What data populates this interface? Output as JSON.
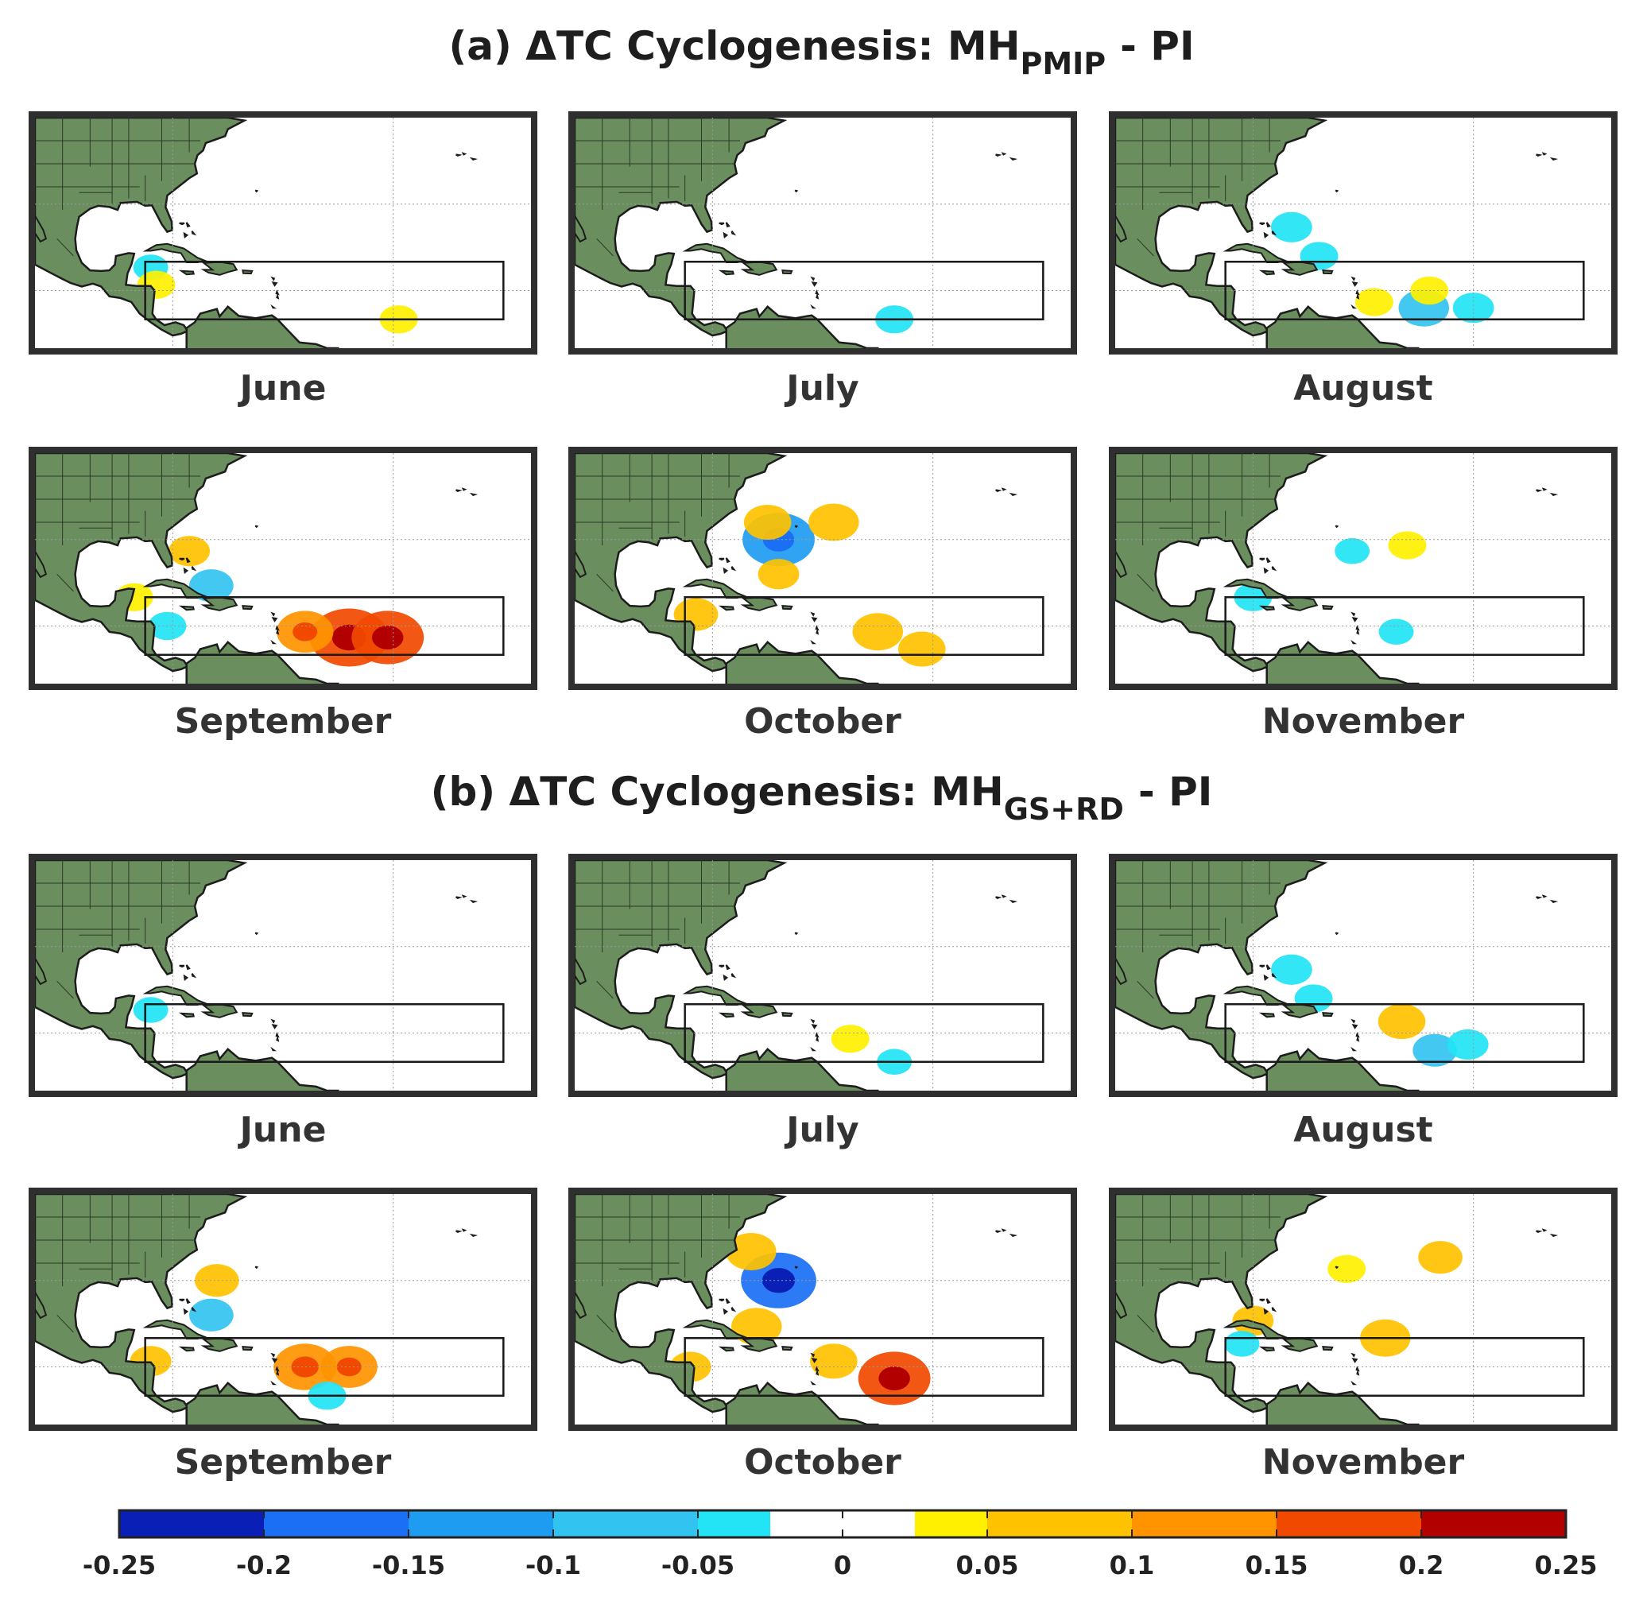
{
  "figure": {
    "sections": [
      {
        "title_prefix": "(a) ΔTC Cyclogenesis: MH",
        "title_sub": "PMIP",
        "title_suffix": "- PI",
        "months": [
          "June",
          "July",
          "August",
          "September",
          "October",
          "November"
        ]
      },
      {
        "title_prefix": "(b) ΔTC Cyclogenesis: MH",
        "title_sub": "GS+RD",
        "title_suffix": "- PI",
        "months": [
          "June",
          "July",
          "August",
          "September",
          "October",
          "November"
        ]
      }
    ],
    "colors": {
      "land": "#6b8e5e",
      "coast": "#1c1c1c",
      "ocean": "#ffffff",
      "frame": "#2f2f2f"
    }
  },
  "chart_data": {
    "type": "heatmap",
    "title": "ΔTC Cyclogenesis",
    "colorbar": {
      "ticks": [
        "-0.25",
        "-0.2",
        "-0.15",
        "-0.1",
        "-0.05",
        "0",
        "0.05",
        "0.1",
        "0.15",
        "0.2",
        "0.25"
      ],
      "range": [
        -0.25,
        0.25
      ],
      "bins": [
        {
          "from": -0.25,
          "to": -0.2,
          "color": "#0a1fb5"
        },
        {
          "from": -0.2,
          "to": -0.15,
          "color": "#1a6ff5"
        },
        {
          "from": -0.15,
          "to": -0.1,
          "color": "#1e9cf2"
        },
        {
          "from": -0.1,
          "to": -0.05,
          "color": "#33c3f0"
        },
        {
          "from": -0.05,
          "to": -0.025,
          "color": "#22e4f5"
        },
        {
          "from": -0.025,
          "to": 0.025,
          "color": "#ffffff"
        },
        {
          "from": 0.025,
          "to": 0.05,
          "color": "#fff000"
        },
        {
          "from": 0.05,
          "to": 0.1,
          "color": "#ffc200"
        },
        {
          "from": 0.1,
          "to": 0.15,
          "color": "#ff9400"
        },
        {
          "from": 0.15,
          "to": 0.2,
          "color": "#f24900"
        },
        {
          "from": 0.2,
          "to": 0.25,
          "color": "#b20000"
        }
      ]
    },
    "panels": [
      {
        "section": "a",
        "month": "June",
        "anomalies": [
          {
            "lon": -84,
            "lat": 19,
            "value": -0.03
          },
          {
            "lon": -83,
            "lat": 16,
            "value": 0.04
          },
          {
            "lon": -39,
            "lat": 10,
            "value": 0.04
          }
        ]
      },
      {
        "section": "a",
        "month": "July",
        "anomalies": [
          {
            "lon": -47,
            "lat": 10,
            "value": -0.04
          }
        ]
      },
      {
        "section": "a",
        "month": "August",
        "anomalies": [
          {
            "lon": -73,
            "lat": 26,
            "value": -0.05
          },
          {
            "lon": -68,
            "lat": 21,
            "value": -0.04
          },
          {
            "lon": -58,
            "lat": 13,
            "value": 0.04
          },
          {
            "lon": -49,
            "lat": 12,
            "value": -0.08
          },
          {
            "lon": -48,
            "lat": 15,
            "value": 0.04
          },
          {
            "lon": -40,
            "lat": 12,
            "value": -0.05
          }
        ]
      },
      {
        "section": "a",
        "month": "September",
        "anomalies": [
          {
            "lon": -77,
            "lat": 28,
            "value": 0.05
          },
          {
            "lon": -73,
            "lat": 22,
            "value": -0.06
          },
          {
            "lon": -87,
            "lat": 20,
            "value": 0.04
          },
          {
            "lon": -81,
            "lat": 15,
            "value": -0.04
          },
          {
            "lon": -48,
            "lat": 13,
            "value": 0.17
          },
          {
            "lon": -41,
            "lat": 13,
            "value": 0.15
          },
          {
            "lon": -56,
            "lat": 14,
            "value": 0.1
          }
        ]
      },
      {
        "section": "a",
        "month": "October",
        "anomalies": [
          {
            "lon": -68,
            "lat": 30,
            "value": -0.15
          },
          {
            "lon": -70,
            "lat": 33,
            "value": 0.07
          },
          {
            "lon": -58,
            "lat": 33,
            "value": 0.08
          },
          {
            "lon": -68,
            "lat": 24,
            "value": 0.05
          },
          {
            "lon": -83,
            "lat": 17,
            "value": 0.06
          },
          {
            "lon": -50,
            "lat": 14,
            "value": 0.08
          },
          {
            "lon": -42,
            "lat": 11,
            "value": 0.07
          }
        ]
      },
      {
        "section": "a",
        "month": "November",
        "anomalies": [
          {
            "lon": -52,
            "lat": 29,
            "value": 0.04
          },
          {
            "lon": -80,
            "lat": 20,
            "value": -0.04
          },
          {
            "lon": -62,
            "lat": 28,
            "value": -0.03
          },
          {
            "lon": -54,
            "lat": 14,
            "value": -0.03
          }
        ]
      },
      {
        "section": "b",
        "month": "June",
        "anomalies": [
          {
            "lon": -84,
            "lat": 19,
            "value": -0.03
          }
        ]
      },
      {
        "section": "b",
        "month": "July",
        "anomalies": [
          {
            "lon": -55,
            "lat": 14,
            "value": 0.04
          },
          {
            "lon": -47,
            "lat": 10,
            "value": -0.03
          }
        ]
      },
      {
        "section": "b",
        "month": "August",
        "anomalies": [
          {
            "lon": -73,
            "lat": 26,
            "value": -0.05
          },
          {
            "lon": -69,
            "lat": 21,
            "value": -0.04
          },
          {
            "lon": -53,
            "lat": 17,
            "value": 0.07
          },
          {
            "lon": -47,
            "lat": 12,
            "value": -0.06
          },
          {
            "lon": -41,
            "lat": 13,
            "value": -0.05
          }
        ]
      },
      {
        "section": "b",
        "month": "September",
        "anomalies": [
          {
            "lon": -72,
            "lat": 30,
            "value": 0.06
          },
          {
            "lon": -73,
            "lat": 24,
            "value": -0.06
          },
          {
            "lon": -84,
            "lat": 16,
            "value": 0.05
          },
          {
            "lon": -56,
            "lat": 15,
            "value": 0.12
          },
          {
            "lon": -48,
            "lat": 15,
            "value": 0.1
          },
          {
            "lon": -52,
            "lat": 10,
            "value": -0.04
          }
        ]
      },
      {
        "section": "b",
        "month": "October",
        "anomalies": [
          {
            "lon": -68,
            "lat": 30,
            "value": -0.16
          },
          {
            "lon": -73,
            "lat": 35,
            "value": 0.08
          },
          {
            "lon": -72,
            "lat": 22,
            "value": 0.08
          },
          {
            "lon": -58,
            "lat": 16,
            "value": 0.07
          },
          {
            "lon": -47,
            "lat": 13,
            "value": 0.15
          },
          {
            "lon": -84,
            "lat": 15,
            "value": 0.05
          }
        ]
      },
      {
        "section": "b",
        "month": "November",
        "anomalies": [
          {
            "lon": -46,
            "lat": 34,
            "value": 0.06
          },
          {
            "lon": -56,
            "lat": 20,
            "value": 0.08
          },
          {
            "lon": -80,
            "lat": 23,
            "value": 0.05
          },
          {
            "lon": -82,
            "lat": 19,
            "value": -0.03
          },
          {
            "lon": -63,
            "lat": 32,
            "value": 0.04
          }
        ]
      }
    ]
  }
}
